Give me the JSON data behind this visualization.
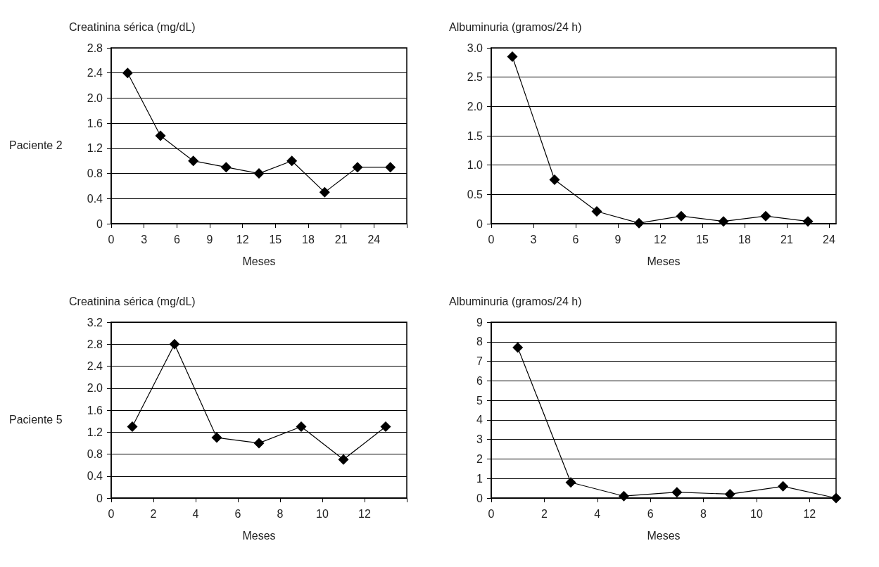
{
  "chart_data": [
    {
      "type": "line",
      "ylabel": "Creatinina sérica (mg/dL)",
      "xlabel": "Meses",
      "annotations": [
        "Paciente 2"
      ],
      "x": [
        1.5,
        4.5,
        7.5,
        10.5,
        13.5,
        16.5,
        19.5,
        22.5,
        25.5
      ],
      "series": [
        {
          "color": "#000000",
          "values": [
            2.4,
            1.4,
            1.0,
            0.9,
            0.8,
            1.0,
            0.5,
            0.9,
            0.9
          ]
        }
      ],
      "xlim": [
        0,
        27
      ],
      "xticks": [
        0,
        3,
        6,
        9,
        12,
        15,
        18,
        21,
        24,
        {
          "value": 27,
          "label": null
        }
      ],
      "ylim": [
        0,
        2.8
      ],
      "yticks": [
        0,
        0.4,
        0.8,
        1.2,
        1.6,
        {
          "value": 2,
          "label": "2.0"
        },
        2.4,
        2.8
      ],
      "grid": "y",
      "marker": "diamond",
      "line_style": "solid"
    },
    {
      "type": "line",
      "ylabel": "Albuminuria (gramos/24 h)",
      "xlabel": "Meses",
      "x": [
        1.5,
        4.5,
        7.5,
        10.5,
        13.5,
        16.5,
        19.5,
        22.5
      ],
      "series": [
        {
          "color": "#000000",
          "values": [
            2.85,
            0.75,
            0.21,
            0.01,
            0.13,
            0.04,
            0.13,
            0.04
          ]
        }
      ],
      "xlim": [
        0,
        24.5
      ],
      "xticks": [
        0,
        3,
        6,
        9,
        12,
        15,
        18,
        21,
        24
      ],
      "ylim": [
        0,
        3
      ],
      "yticks": [
        0,
        0.5,
        {
          "value": 1,
          "label": "1.0"
        },
        1.5,
        {
          "value": 2,
          "label": "2.0"
        },
        2.5,
        {
          "value": 3,
          "label": "3.0"
        }
      ],
      "grid": "y",
      "marker": "diamond",
      "line_style": "solid"
    },
    {
      "type": "line",
      "ylabel": "Creatinina sérica (mg/dL)",
      "xlabel": "Meses",
      "annotations": [
        "Paciente 5"
      ],
      "x": [
        1,
        3,
        5,
        7,
        9,
        11,
        13
      ],
      "series": [
        {
          "color": "#000000",
          "values": [
            1.3,
            2.8,
            1.1,
            1.0,
            1.3,
            0.7,
            1.3
          ]
        }
      ],
      "xlim": [
        0,
        14
      ],
      "xticks": [
        0,
        2,
        4,
        6,
        8,
        10,
        12,
        {
          "value": 14,
          "label": null
        }
      ],
      "ylim": [
        0,
        3.2
      ],
      "yticks": [
        0,
        0.4,
        0.8,
        1.2,
        1.6,
        {
          "value": 2,
          "label": "2.0"
        },
        2.4,
        2.8,
        3.2
      ],
      "grid": "y",
      "marker": "diamond",
      "line_style": "solid"
    },
    {
      "type": "line",
      "ylabel": "Albuminuria (gramos/24 h)",
      "xlabel": "Meses",
      "x": [
        1,
        3,
        5,
        7,
        9,
        11,
        13
      ],
      "series": [
        {
          "color": "#000000",
          "values": [
            7.7,
            0.8,
            0.1,
            0.3,
            0.2,
            0.6,
            0
          ]
        }
      ],
      "xlim": [
        0,
        13
      ],
      "xticks": [
        0,
        2,
        4,
        6,
        8,
        10,
        12
      ],
      "ylim": [
        0,
        9
      ],
      "yticks": [
        0,
        1,
        2,
        3,
        4,
        5,
        6,
        7,
        8,
        9
      ],
      "grid": "y",
      "marker": "diamond",
      "line_style": "solid"
    }
  ]
}
